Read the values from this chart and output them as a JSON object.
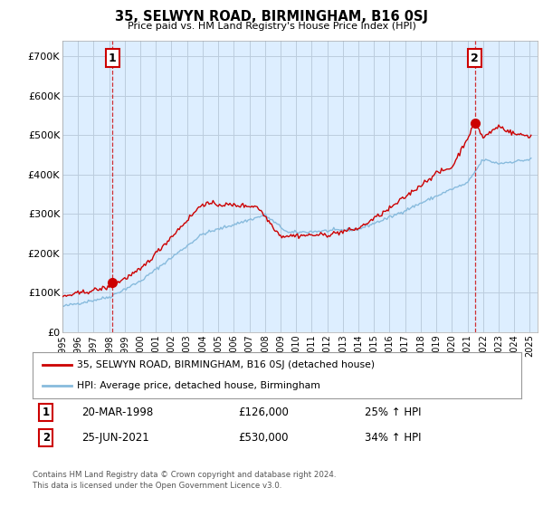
{
  "title": "35, SELWYN ROAD, BIRMINGHAM, B16 0SJ",
  "subtitle": "Price paid vs. HM Land Registry's House Price Index (HPI)",
  "ylabel_ticks": [
    "£0",
    "£100K",
    "£200K",
    "£300K",
    "£400K",
    "£500K",
    "£600K",
    "£700K"
  ],
  "ytick_values": [
    0,
    100000,
    200000,
    300000,
    400000,
    500000,
    600000,
    700000
  ],
  "ylim": [
    0,
    740000
  ],
  "xlim_start": 1995.0,
  "xlim_end": 2025.5,
  "sale1_x": 1998.22,
  "sale1_y": 126000,
  "sale2_x": 2021.48,
  "sale2_y": 530000,
  "sale1_label": "1",
  "sale2_label": "2",
  "sale1_date": "20-MAR-1998",
  "sale1_price": "£126,000",
  "sale1_hpi": "25% ↑ HPI",
  "sale2_date": "25-JUN-2021",
  "sale2_price": "£530,000",
  "sale2_hpi": "34% ↑ HPI",
  "legend_label1": "35, SELWYN ROAD, BIRMINGHAM, B16 0SJ (detached house)",
  "legend_label2": "HPI: Average price, detached house, Birmingham",
  "footer1": "Contains HM Land Registry data © Crown copyright and database right 2024.",
  "footer2": "This data is licensed under the Open Government Licence v3.0.",
  "line_color_red": "#cc0000",
  "line_color_blue": "#88bbdd",
  "dashed_color": "#cc0000",
  "bg_color": "#ffffff",
  "plot_bg_color": "#ddeeff",
  "grid_color": "#bbccdd"
}
